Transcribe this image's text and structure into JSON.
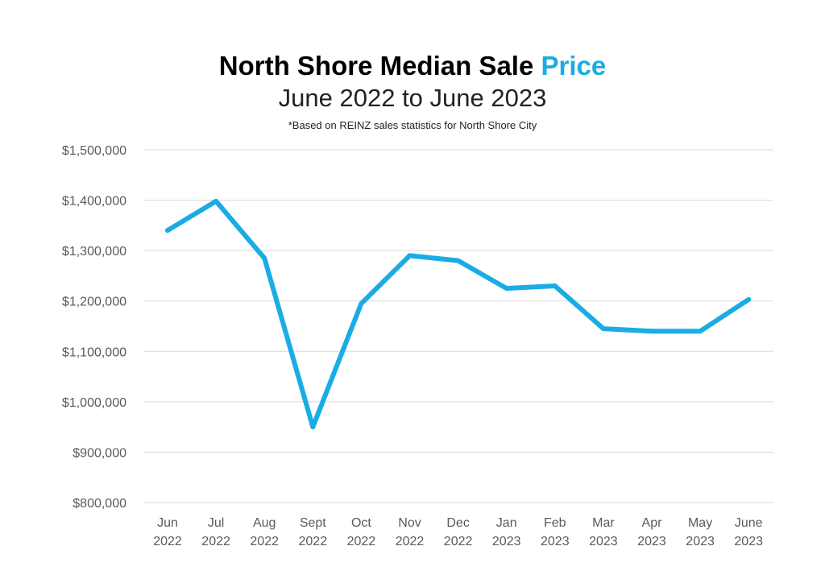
{
  "chart_data": {
    "type": "line",
    "title_main": "North Shore Median Sale",
    "title_accent": "Price",
    "subtitle": "June 2022 to June 2023",
    "note": "*Based on REINZ sales statistics for North Shore City",
    "xlabel": "",
    "ylabel": "",
    "ylim": [
      800000,
      1500000
    ],
    "yticks": [
      800000,
      900000,
      1000000,
      1100000,
      1200000,
      1300000,
      1400000,
      1500000
    ],
    "ytick_labels": [
      "$800,000",
      "$900,000",
      "$1,000,000",
      "$1,100,000",
      "$1,200,000",
      "$1,300,000",
      "$1,400,000",
      "$1,500,000"
    ],
    "categories": [
      {
        "month": "Jun",
        "year": "2022"
      },
      {
        "month": "Jul",
        "year": "2022"
      },
      {
        "month": "Aug",
        "year": "2022"
      },
      {
        "month": "Sept",
        "year": "2022"
      },
      {
        "month": "Oct",
        "year": "2022"
      },
      {
        "month": "Nov",
        "year": "2022"
      },
      {
        "month": "Dec",
        "year": "2022"
      },
      {
        "month": "Jan",
        "year": "2023"
      },
      {
        "month": "Feb",
        "year": "2023"
      },
      {
        "month": "Mar",
        "year": "2023"
      },
      {
        "month": "Apr",
        "year": "2023"
      },
      {
        "month": "May",
        "year": "2023"
      },
      {
        "month": "June",
        "year": "2023"
      }
    ],
    "series": [
      {
        "name": "Median Sale Price",
        "color": "#1aace4",
        "values": [
          1340000,
          1398000,
          1285000,
          950000,
          1195000,
          1290000,
          1280000,
          1225000,
          1230000,
          1145000,
          1140000,
          1140000,
          1203000
        ]
      }
    ],
    "grid": true,
    "gridline_color": "#d9d9d9"
  }
}
